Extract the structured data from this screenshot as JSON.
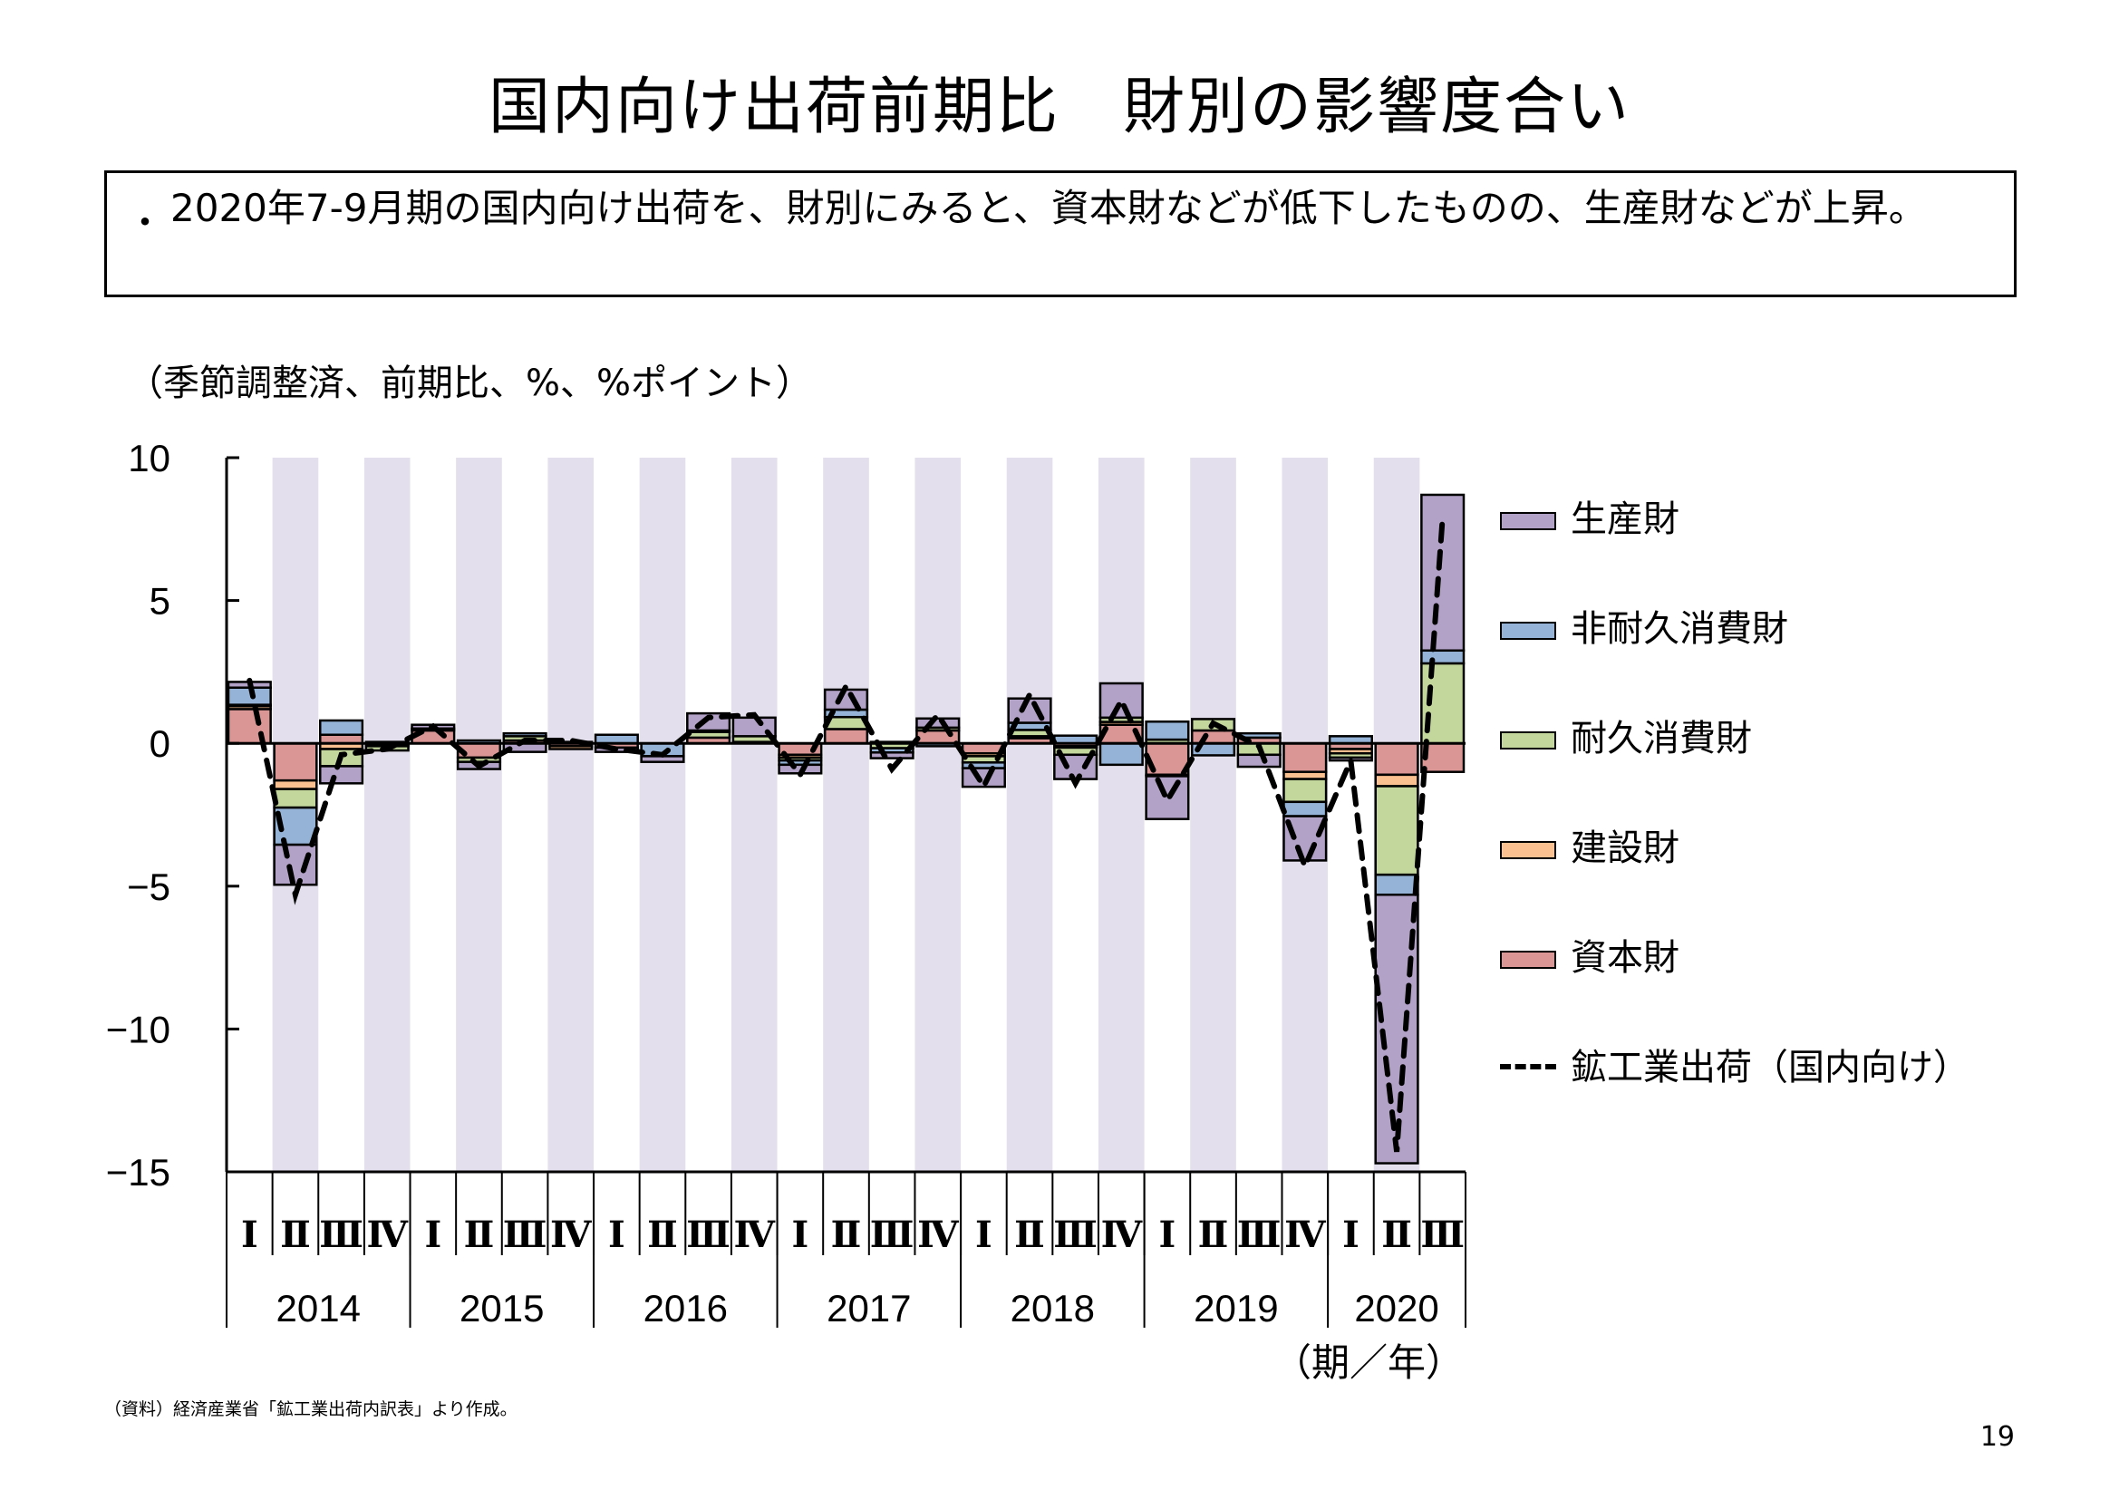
{
  "title": "国内向け出荷前期比　財別の影響度合い",
  "summary": {
    "bullet": "・",
    "text": "2020年7-9月期の国内向け出荷を、財別にみると、資本財などが低下したものの、生産財などが上昇。"
  },
  "unit_note": "（季節調整済、前期比、%、%ポイント）",
  "x_axis_unit": "（期／年）",
  "footnote": "（資料）経済産業省「鉱工業出荷内訳表」より作成。",
  "page_number": "19",
  "colors": {
    "producer": "#b3a2c7",
    "nondurable": "#95b3d7",
    "durable": "#c3d69b",
    "construction": "#fac090",
    "capital": "#d99694",
    "band": "#e4dfec",
    "line": "#000000"
  },
  "legend": [
    {
      "key": "producer",
      "label": "生産財",
      "type": "bar"
    },
    {
      "key": "nondurable",
      "label": "非耐久消費財",
      "type": "bar"
    },
    {
      "key": "durable",
      "label": "耐久消費財",
      "type": "bar"
    },
    {
      "key": "construction",
      "label": "建設財",
      "type": "bar"
    },
    {
      "key": "capital",
      "label": "資本財",
      "type": "bar"
    },
    {
      "key": "total",
      "label": "鉱工業出荷（国内向け）",
      "type": "line"
    }
  ],
  "chart_data": {
    "type": "bar",
    "subtype": "stacked-bar-with-line",
    "title": "国内向け出荷前期比　財別の影響度合い",
    "ylabel": "（季節調整済、前期比、%、%ポイント）",
    "xlabel": "（期／年）",
    "ylim": [
      -15,
      10
    ],
    "yticks": [
      10,
      5,
      0,
      -5,
      -10,
      -15
    ],
    "ytick_labels": [
      "10",
      "5",
      "0",
      "−5",
      "−10",
      "−15"
    ],
    "quarter_labels": [
      "Ⅰ",
      "Ⅱ",
      "Ⅲ",
      "Ⅳ",
      "Ⅰ",
      "Ⅱ",
      "Ⅲ",
      "Ⅳ",
      "Ⅰ",
      "Ⅱ",
      "Ⅲ",
      "Ⅳ",
      "Ⅰ",
      "Ⅱ",
      "Ⅲ",
      "Ⅳ",
      "Ⅰ",
      "Ⅱ",
      "Ⅲ",
      "Ⅳ",
      "Ⅰ",
      "Ⅱ",
      "Ⅲ",
      "Ⅳ",
      "Ⅰ",
      "Ⅱ",
      "Ⅲ"
    ],
    "years": [
      {
        "label": "2014",
        "quarters": 4
      },
      {
        "label": "2015",
        "quarters": 4
      },
      {
        "label": "2016",
        "quarters": 4
      },
      {
        "label": "2017",
        "quarters": 4
      },
      {
        "label": "2018",
        "quarters": 4
      },
      {
        "label": "2019",
        "quarters": 4
      },
      {
        "label": "2020",
        "quarters": 3
      }
    ],
    "shaded_quarters": [
      2,
      4
    ],
    "legend_position": "right",
    "series": [
      {
        "name": "資本財",
        "key": "capital",
        "values": [
          1.2,
          -1.3,
          0.3,
          -0.05,
          0.45,
          -0.5,
          0.1,
          -0.1,
          -0.15,
          0,
          0.2,
          0.05,
          -0.4,
          0.5,
          0.05,
          0.45,
          -0.35,
          0.18,
          -0.1,
          0.65,
          -1.1,
          0.45,
          0.2,
          -1.0,
          -0.2,
          -1.1,
          -1.0
        ]
      },
      {
        "name": "建設財",
        "key": "construction",
        "values": [
          0.1,
          -0.3,
          -0.2,
          -0.05,
          0,
          0,
          0,
          -0.1,
          0,
          0,
          0,
          0,
          -0.1,
          0,
          0,
          0,
          -0.1,
          0.07,
          -0.05,
          0.1,
          -0.05,
          0,
          0,
          -0.25,
          -0.15,
          -0.4,
          0
        ]
      },
      {
        "name": "耐久消費財",
        "key": "durable",
        "values": [
          0.05,
          -0.65,
          -0.6,
          -0.15,
          0.05,
          -0.15,
          0.15,
          0,
          0,
          0,
          0.2,
          0.2,
          -0.1,
          0.42,
          -0.17,
          0.1,
          -0.22,
          0.22,
          -0.25,
          0.15,
          0.13,
          0.4,
          -0.4,
          -0.8,
          -0.15,
          -3.1,
          2.8
        ]
      },
      {
        "name": "非耐久消費財",
        "key": "nondurable",
        "values": [
          0.6,
          -1.3,
          0.5,
          0,
          0.02,
          0.1,
          0.1,
          0,
          0.3,
          -0.45,
          0.05,
          0,
          -0.15,
          0.26,
          -0.15,
          -0.1,
          -0.2,
          0.25,
          0.27,
          -0.75,
          0.63,
          -0.42,
          0.15,
          -0.5,
          0.25,
          -0.7,
          0.45
        ]
      },
      {
        "name": "生産財",
        "key": "producer",
        "values": [
          0.2,
          -1.4,
          -0.6,
          0.05,
          0.13,
          -0.25,
          -0.3,
          0.05,
          -0.15,
          -0.2,
          0.6,
          0.65,
          -0.3,
          0.7,
          -0.2,
          0.32,
          -0.65,
          0.85,
          -0.85,
          1.2,
          -1.5,
          0,
          -0.42,
          -1.55,
          -0.1,
          -9.4,
          5.45
        ]
      },
      {
        "name": "鉱工業出荷（国内向け）",
        "key": "total",
        "type": "line",
        "style": "dashed",
        "values": [
          2.2,
          -5.3,
          -0.4,
          -0.2,
          0.6,
          -0.8,
          0.1,
          0.1,
          -0.2,
          -0.4,
          0.9,
          1.0,
          -1.1,
          2.0,
          -0.9,
          1.0,
          -1.5,
          1.7,
          -1.4,
          1.5,
          -2.0,
          0.7,
          -0.1,
          -4.3,
          -0.6,
          -14.3,
          7.9
        ]
      }
    ]
  }
}
